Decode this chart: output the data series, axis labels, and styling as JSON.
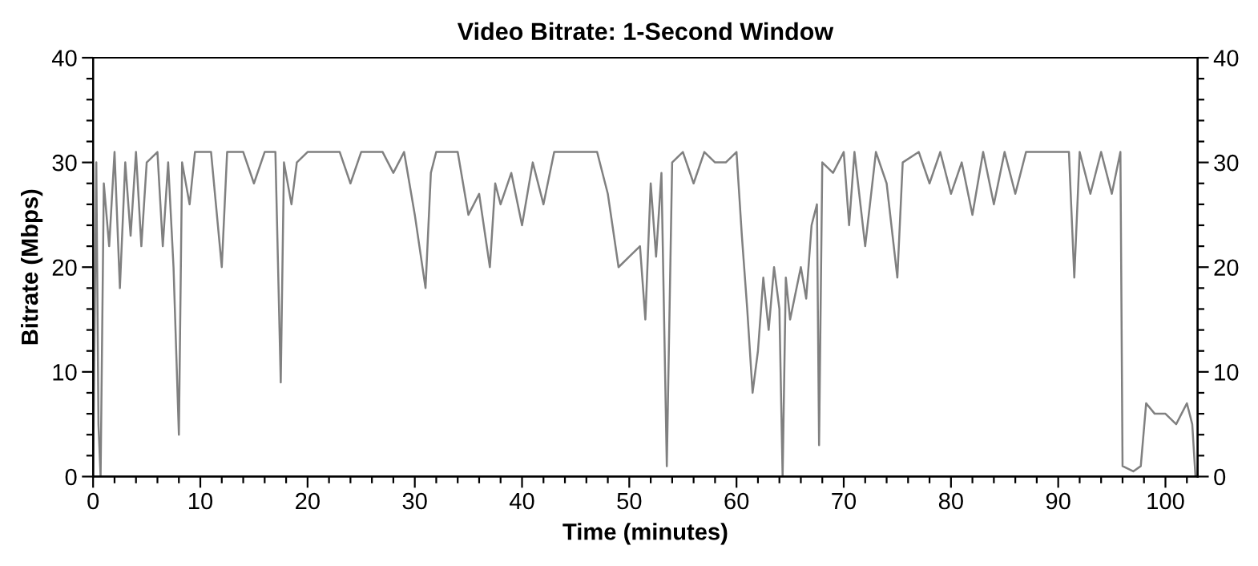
{
  "chart_data": {
    "type": "line",
    "title": "Video Bitrate: 1-Second Window",
    "xlabel": "Time (minutes)",
    "ylabel": "Bitrate (Mbps)",
    "xlim": [
      0,
      103
    ],
    "xticks": [
      0,
      {
        "value": 2,
        "label": null
      },
      {
        "value": 4,
        "label": null
      },
      {
        "value": 6,
        "label": null
      },
      {
        "value": 8,
        "label": null
      },
      10,
      {
        "value": 12,
        "label": null
      },
      {
        "value": 14,
        "label": null
      },
      {
        "value": 16,
        "label": null
      },
      {
        "value": 18,
        "label": null
      },
      20,
      {
        "value": 22,
        "label": null
      },
      {
        "value": 24,
        "label": null
      },
      {
        "value": 26,
        "label": null
      },
      {
        "value": 28,
        "label": null
      },
      30,
      {
        "value": 32,
        "label": null
      },
      {
        "value": 34,
        "label": null
      },
      {
        "value": 36,
        "label": null
      },
      {
        "value": 38,
        "label": null
      },
      40,
      {
        "value": 42,
        "label": null
      },
      {
        "value": 44,
        "label": null
      },
      {
        "value": 46,
        "label": null
      },
      {
        "value": 48,
        "label": null
      },
      50,
      {
        "value": 52,
        "label": null
      },
      {
        "value": 54,
        "label": null
      },
      {
        "value": 56,
        "label": null
      },
      {
        "value": 58,
        "label": null
      },
      60,
      {
        "value": 62,
        "label": null
      },
      {
        "value": 64,
        "label": null
      },
      {
        "value": 66,
        "label": null
      },
      {
        "value": 68,
        "label": null
      },
      70,
      {
        "value": 72,
        "label": null
      },
      {
        "value": 74,
        "label": null
      },
      {
        "value": 76,
        "label": null
      },
      {
        "value": 78,
        "label": null
      },
      80,
      {
        "value": 82,
        "label": null
      },
      {
        "value": 84,
        "label": null
      },
      {
        "value": 86,
        "label": null
      },
      {
        "value": 88,
        "label": null
      },
      90,
      {
        "value": 92,
        "label": null
      },
      {
        "value": 94,
        "label": null
      },
      {
        "value": 96,
        "label": null
      },
      {
        "value": 98,
        "label": null
      },
      100,
      {
        "value": 102,
        "label": null
      }
    ],
    "ylim": [
      0,
      40
    ],
    "yticks": [
      0,
      {
        "value": 2,
        "label": null
      },
      {
        "value": 4,
        "label": null
      },
      {
        "value": 6,
        "label": null
      },
      {
        "value": 8,
        "label": null
      },
      10,
      {
        "value": 12,
        "label": null
      },
      {
        "value": 14,
        "label": null
      },
      {
        "value": 16,
        "label": null
      },
      {
        "value": 18,
        "label": null
      },
      20,
      {
        "value": 22,
        "label": null
      },
      {
        "value": 24,
        "label": null
      },
      {
        "value": 26,
        "label": null
      },
      {
        "value": 28,
        "label": null
      },
      30,
      {
        "value": 32,
        "label": null
      },
      {
        "value": 34,
        "label": null
      },
      {
        "value": 36,
        "label": null
      },
      {
        "value": 38,
        "label": null
      },
      40
    ],
    "y2lim": [
      0,
      40
    ],
    "y2ticks": [
      0,
      {
        "value": 2,
        "label": null
      },
      {
        "value": 4,
        "label": null
      },
      {
        "value": 6,
        "label": null
      },
      {
        "value": 8,
        "label": null
      },
      10,
      {
        "value": 12,
        "label": null
      },
      {
        "value": 14,
        "label": null
      },
      {
        "value": 16,
        "label": null
      },
      {
        "value": 18,
        "label": null
      },
      20,
      {
        "value": 22,
        "label": null
      },
      {
        "value": 24,
        "label": null
      },
      {
        "value": 26,
        "label": null
      },
      {
        "value": 28,
        "label": null
      },
      30,
      {
        "value": 32,
        "label": null
      },
      {
        "value": 34,
        "label": null
      },
      {
        "value": 36,
        "label": null
      },
      {
        "value": 38,
        "label": null
      },
      40
    ],
    "grid": false,
    "marker": "none",
    "line_style": "solid",
    "series": [
      {
        "color": "#808080",
        "x": [
          0,
          0.3,
          0.5,
          0.7,
          1,
          1.5,
          2,
          2.5,
          3,
          3.5,
          4,
          4.5,
          5,
          6,
          6.5,
          7,
          7.5,
          8,
          8.3,
          9,
          9.5,
          11,
          12,
          12.5,
          14,
          15,
          16,
          17,
          17.5,
          17.8,
          18.5,
          19,
          20,
          22,
          23,
          24,
          25,
          27,
          28,
          29,
          30,
          31,
          31.5,
          32,
          34,
          35,
          36,
          37,
          37.5,
          38,
          39,
          40,
          41,
          42,
          43,
          45,
          47,
          48,
          49,
          50,
          51,
          51.5,
          52,
          52.5,
          53,
          53.5,
          54,
          55,
          56,
          57,
          58,
          59,
          60,
          60.5,
          61,
          61.5,
          62,
          62.5,
          63,
          63.5,
          64,
          64.3,
          64.6,
          65,
          66,
          66.5,
          67,
          67.5,
          67.7,
          68,
          69,
          70,
          70.5,
          71,
          72,
          73,
          74,
          75,
          75.5,
          77,
          78,
          79,
          80,
          81,
          82,
          83,
          84,
          85,
          86,
          87,
          89,
          90,
          91,
          91.5,
          92,
          93,
          94,
          95,
          95.8,
          96,
          97,
          97.7,
          98.2,
          99,
          100,
          101,
          102,
          102.5,
          102.8
        ],
        "values": [
          0,
          30,
          5,
          0,
          28,
          22,
          31,
          18,
          30,
          23,
          31,
          22,
          30,
          31,
          22,
          30,
          20,
          4,
          30,
          26,
          31,
          31,
          20,
          31,
          31,
          28,
          31,
          31,
          9,
          30,
          26,
          30,
          31,
          31,
          31,
          28,
          31,
          31,
          29,
          31,
          25,
          18,
          29,
          31,
          31,
          25,
          27,
          20,
          28,
          26,
          29,
          24,
          30,
          26,
          31,
          31,
          31,
          27,
          20,
          21,
          22,
          15,
          28,
          21,
          29,
          1,
          30,
          31,
          28,
          31,
          30,
          30,
          31,
          23,
          16,
          8,
          12,
          19,
          14,
          20,
          16,
          0,
          19,
          15,
          20,
          17,
          24,
          26,
          3,
          30,
          29,
          31,
          24,
          31,
          22,
          31,
          28,
          19,
          30,
          31,
          28,
          31,
          27,
          30,
          25,
          31,
          26,
          31,
          27,
          31,
          31,
          31,
          31,
          19,
          31,
          27,
          31,
          27,
          31,
          1,
          0.5,
          1,
          7,
          6,
          6,
          5,
          7,
          5,
          0
        ]
      }
    ]
  }
}
